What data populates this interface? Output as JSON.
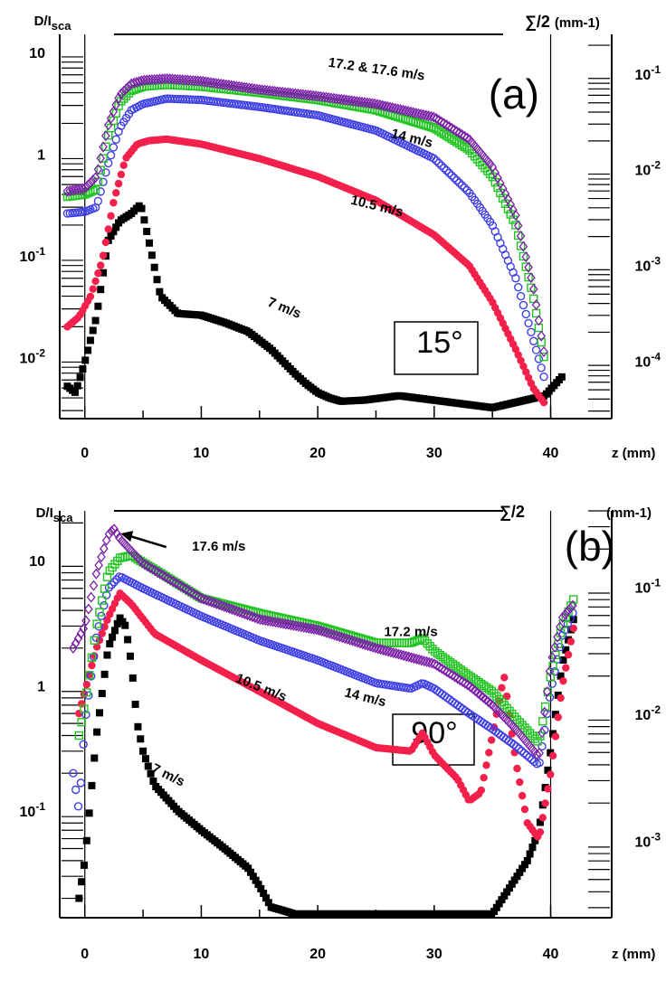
{
  "colors": {
    "7 m/s": "#000000",
    "10.5 m/s": "#f2204a",
    "14 m/s": "#3f3fe6",
    "17.2 m/s": "#22c422",
    "17.6 m/s": "#7a20a8"
  },
  "chart_data": [
    {
      "type": "scatter",
      "panel": "(a)",
      "angle": "15°",
      "ylabel": "D/Isca",
      "ylabel_main": "D/I",
      "ylabel_sub": "sca",
      "y2label": "∑/2 (mm-1)",
      "y2label_main": "∑/2",
      "y2label_units": "(mm-1)",
      "xlabel": "z (mm)",
      "xlim": [
        -2,
        44
      ],
      "ylim": [
        0.0025,
        15
      ],
      "y2lim": [
        2.5e-05,
        0.26
      ],
      "xticks": [
        "0",
        "10",
        "20",
        "30",
        "40"
      ],
      "xtick_values": [
        0,
        10,
        20,
        30,
        40
      ],
      "yticks": [
        "10",
        "1",
        "10-1",
        "10-2"
      ],
      "ytick_values": [
        10,
        1,
        0.1,
        0.01
      ],
      "y2ticks": [
        "10-1",
        "10-2",
        "10-3",
        "10-4"
      ],
      "y2tick_values": [
        0.1,
        0.01,
        0.001,
        0.0001
      ],
      "annotations": [
        {
          "text": "17.2 & 17.6 m/s",
          "x": 25,
          "y": 6.2
        },
        {
          "text": "14 m/s",
          "x": 28,
          "y": 1.3
        },
        {
          "text": "10.5 m/s",
          "x": 25,
          "y": 0.28
        },
        {
          "text": "7 m/s",
          "x": 17,
          "y": 0.028
        }
      ],
      "series": [
        {
          "name": "7 m/s",
          "marker": "square",
          "x": [
            -1.5,
            -0.8,
            0,
            1,
            2,
            3,
            4,
            4.8,
            5.5,
            6.5,
            8,
            10,
            12,
            14,
            16,
            18,
            19,
            20,
            21,
            22,
            24,
            27,
            35,
            39.5,
            41
          ],
          "y": [
            0.0052,
            0.0045,
            0.009,
            0.025,
            0.14,
            0.22,
            0.26,
            0.32,
            0.14,
            0.04,
            0.027,
            0.026,
            0.022,
            0.018,
            0.012,
            0.007,
            0.0055,
            0.0045,
            0.004,
            0.0037,
            0.0038,
            0.0042,
            0.0032,
            0.0042,
            0.0065
          ]
        },
        {
          "name": "10.5 m/s",
          "marker": "circle-filled",
          "x": [
            -1.5,
            -0.5,
            0.5,
            1.5,
            2.5,
            3.5,
            4.5,
            5.5,
            7,
            10,
            15,
            20,
            25,
            30,
            33,
            35,
            37,
            38.5,
            39.5
          ],
          "y": [
            0.02,
            0.025,
            0.04,
            0.09,
            0.35,
            0.9,
            1.25,
            1.35,
            1.4,
            1.25,
            0.9,
            0.6,
            0.35,
            0.16,
            0.08,
            0.035,
            0.012,
            0.005,
            0.0035
          ]
        },
        {
          "name": "14 m/s",
          "marker": "circle-open",
          "x": [
            -1.5,
            0,
            1,
            2,
            3,
            4,
            5,
            7,
            10,
            15,
            20,
            25,
            30,
            33,
            35,
            37,
            38.5,
            39.5
          ],
          "y": [
            0.26,
            0.27,
            0.3,
            0.8,
            1.8,
            2.7,
            3.1,
            3.5,
            3.4,
            2.9,
            2.4,
            1.7,
            0.9,
            0.42,
            0.2,
            0.06,
            0.015,
            0.006
          ]
        },
        {
          "name": "17.2 m/s",
          "marker": "square-open",
          "x": [
            -1.5,
            0,
            1,
            2,
            3,
            4,
            5,
            7,
            10,
            15,
            20,
            25,
            30,
            33,
            35,
            37,
            38.5,
            39.5
          ],
          "y": [
            0.38,
            0.4,
            0.45,
            1.5,
            3.2,
            4.2,
            4.6,
            4.8,
            4.6,
            4.0,
            3.4,
            2.7,
            1.8,
            1.1,
            0.6,
            0.2,
            0.04,
            0.009
          ]
        },
        {
          "name": "17.6 m/s",
          "marker": "diamond-open",
          "x": [
            -1.5,
            0,
            1,
            2,
            3,
            4,
            5,
            7,
            10,
            15,
            20,
            25,
            30,
            33,
            35,
            37,
            38.5,
            39.5
          ],
          "y": [
            0.43,
            0.46,
            0.6,
            1.9,
            3.8,
            4.9,
            5.3,
            5.5,
            5.2,
            4.3,
            3.7,
            3.1,
            2.3,
            1.4,
            0.75,
            0.25,
            0.05,
            0.01
          ]
        }
      ]
    },
    {
      "type": "scatter",
      "panel": "(b)",
      "angle": "90°",
      "ylabel": "D/Isca",
      "ylabel_main": "D/I",
      "ylabel_sub": "sca",
      "y2label": "∑/2 (mm-1)",
      "y2label_main": "∑/2",
      "y2label_units": "(mm-1)",
      "xlabel": "z (mm)",
      "xlim": [
        -2,
        44
      ],
      "ylim": [
        0.014,
        25
      ],
      "y2lim": [
        0.00025,
        0.4
      ],
      "xticks": [
        "0",
        "10",
        "20",
        "30",
        "40"
      ],
      "xtick_values": [
        0,
        10,
        20,
        30,
        40
      ],
      "yticks": [
        "10",
        "1",
        "10-1"
      ],
      "ytick_values": [
        10,
        1,
        0.1
      ],
      "y2ticks": [
        "10-1",
        "10-2",
        "10-3"
      ],
      "y2tick_values": [
        0.1,
        0.01,
        0.001
      ],
      "annotations": [
        {
          "text": "17.6 m/s",
          "x": 11.5,
          "y": 12
        },
        {
          "text": "17.2 m/s",
          "x": 28,
          "y": 2.5
        },
        {
          "text": "14 m/s",
          "x": 24,
          "y": 0.75
        },
        {
          "text": "10.5 m/s",
          "x": 15,
          "y": 0.9
        },
        {
          "text": "7 m/s",
          "x": 7,
          "y": 0.18
        }
      ],
      "series": [
        {
          "name": "7 m/s",
          "marker": "square",
          "x": [
            -0.5,
            0,
            1,
            2,
            3,
            3.5,
            4,
            4.5,
            5,
            6,
            8,
            10,
            12,
            14,
            15,
            16,
            17,
            18,
            20,
            25,
            30,
            35,
            38,
            39,
            40,
            41,
            42
          ],
          "y": [
            0.02,
            0.04,
            0.4,
            2.0,
            3.5,
            3.0,
            1.5,
            0.5,
            0.3,
            0.16,
            0.1,
            0.07,
            0.05,
            0.035,
            0.025,
            0.017,
            0.016,
            0.015,
            0.015,
            0.015,
            0.015,
            0.015,
            0.04,
            0.07,
            0.3,
            1.5,
            3.5
          ]
        },
        {
          "name": "10.5 m/s",
          "marker": "circle-filled",
          "x": [
            -0.5,
            0,
            1,
            2,
            3,
            4,
            6,
            10,
            15,
            20,
            25,
            28,
            29,
            30,
            32,
            33,
            34,
            35,
            36,
            37,
            38,
            39,
            40,
            41,
            42
          ],
          "y": [
            0.6,
            0.9,
            2.0,
            3.5,
            5.5,
            4.5,
            2.6,
            1.6,
            0.9,
            0.5,
            0.32,
            0.3,
            0.42,
            0.28,
            0.18,
            0.12,
            0.14,
            0.4,
            1.2,
            0.25,
            0.08,
            0.06,
            0.2,
            1.0,
            3.0
          ]
        },
        {
          "name": "14 m/s",
          "marker": "circle-open",
          "x": [
            -1,
            -0.5,
            0,
            1,
            2,
            3,
            5,
            10,
            15,
            20,
            25,
            28,
            29,
            30,
            33,
            35,
            37,
            39,
            40,
            41,
            42
          ],
          "y": [
            0.2,
            0.1,
            0.5,
            2.5,
            6.0,
            7.5,
            6.0,
            3.6,
            2.3,
            1.6,
            1.05,
            0.95,
            1.05,
            0.95,
            0.6,
            0.45,
            0.33,
            0.23,
            0.9,
            2.5,
            4.0
          ]
        },
        {
          "name": "17.2 m/s",
          "marker": "square-open",
          "x": [
            -0.5,
            0,
            1,
            2,
            3,
            4,
            6,
            10,
            15,
            20,
            25,
            28,
            29,
            30,
            33,
            35,
            37,
            39,
            40,
            41,
            42
          ],
          "y": [
            0.4,
            0.7,
            3.0,
            8.0,
            10.5,
            11.0,
            8.5,
            5.0,
            3.8,
            3.0,
            2.2,
            2.2,
            2.4,
            1.9,
            1.2,
            0.9,
            0.55,
            0.35,
            1.2,
            3.0,
            5.0
          ]
        },
        {
          "name": "17.6 m/s",
          "marker": "diamond-open",
          "x": [
            -1,
            0,
            1,
            2,
            2.5,
            3,
            5,
            10,
            15,
            20,
            25,
            30,
            33,
            35,
            37,
            39,
            40,
            41,
            42
          ],
          "y": [
            2.0,
            3.0,
            8.0,
            16.0,
            18.0,
            15.0,
            9.5,
            5.0,
            3.4,
            2.8,
            2.0,
            1.5,
            1.0,
            0.7,
            0.45,
            0.27,
            1.5,
            3.5,
            4.5
          ]
        }
      ]
    }
  ]
}
